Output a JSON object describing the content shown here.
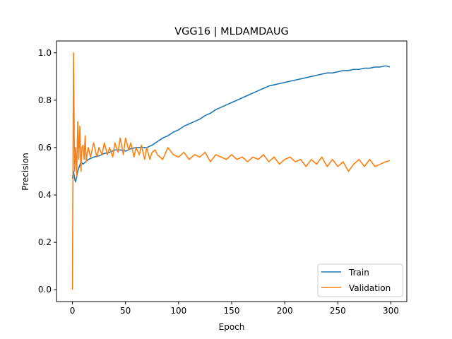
{
  "chart_data": {
    "type": "line",
    "title": "VGG16 | MLDAMDAUG",
    "xlabel": "Epoch",
    "ylabel": "Precision",
    "xlim": [
      -15,
      315
    ],
    "ylim": [
      -0.05,
      1.05
    ],
    "xticks": [
      0,
      50,
      100,
      150,
      200,
      250,
      300
    ],
    "yticks": [
      0.0,
      0.2,
      0.4,
      0.6,
      0.8,
      1.0
    ],
    "ytick_labels": [
      "0.0",
      "0.2",
      "0.4",
      "0.6",
      "0.8",
      "1.0"
    ],
    "legend_position": "lower-right",
    "grid": false,
    "series": [
      {
        "name": "Train",
        "color": "#1f77b4",
        "x": [
          0,
          1,
          2,
          3,
          5,
          8,
          10,
          15,
          20,
          25,
          30,
          35,
          40,
          45,
          50,
          55,
          60,
          65,
          70,
          75,
          80,
          85,
          90,
          95,
          100,
          105,
          110,
          115,
          120,
          125,
          130,
          135,
          140,
          145,
          150,
          155,
          160,
          165,
          170,
          175,
          180,
          185,
          190,
          195,
          200,
          205,
          210,
          215,
          220,
          225,
          230,
          235,
          240,
          245,
          250,
          255,
          260,
          265,
          270,
          275,
          280,
          285,
          290,
          295,
          299
        ],
        "y": [
          0.47,
          0.5,
          0.47,
          0.455,
          0.5,
          0.54,
          0.53,
          0.55,
          0.56,
          0.565,
          0.575,
          0.58,
          0.59,
          0.59,
          0.585,
          0.595,
          0.6,
          0.6,
          0.6,
          0.61,
          0.625,
          0.64,
          0.65,
          0.665,
          0.675,
          0.69,
          0.7,
          0.71,
          0.72,
          0.735,
          0.745,
          0.76,
          0.77,
          0.78,
          0.79,
          0.8,
          0.81,
          0.82,
          0.83,
          0.84,
          0.85,
          0.86,
          0.865,
          0.87,
          0.875,
          0.88,
          0.885,
          0.89,
          0.895,
          0.9,
          0.905,
          0.91,
          0.915,
          0.915,
          0.92,
          0.925,
          0.925,
          0.93,
          0.93,
          0.935,
          0.935,
          0.94,
          0.94,
          0.945,
          0.94
        ]
      },
      {
        "name": "Validation",
        "color": "#ff7f0e",
        "x": [
          0,
          1,
          2,
          3,
          4,
          5,
          6,
          7,
          8,
          9,
          10,
          11,
          12,
          13,
          14,
          15,
          17,
          20,
          23,
          25,
          28,
          30,
          33,
          35,
          38,
          40,
          43,
          45,
          48,
          50,
          53,
          55,
          58,
          60,
          63,
          65,
          68,
          70,
          73,
          75,
          78,
          80,
          85,
          90,
          95,
          100,
          105,
          110,
          115,
          120,
          125,
          130,
          135,
          140,
          145,
          150,
          155,
          160,
          165,
          170,
          175,
          180,
          185,
          190,
          195,
          200,
          205,
          210,
          215,
          220,
          225,
          230,
          235,
          240,
          245,
          250,
          255,
          260,
          265,
          270,
          275,
          280,
          285,
          290,
          295,
          299
        ],
        "y": [
          0.0,
          1.0,
          0.5,
          0.6,
          0.48,
          0.71,
          0.55,
          0.69,
          0.5,
          0.6,
          0.61,
          0.55,
          0.65,
          0.54,
          0.58,
          0.6,
          0.56,
          0.62,
          0.56,
          0.6,
          0.57,
          0.62,
          0.57,
          0.6,
          0.56,
          0.62,
          0.58,
          0.64,
          0.57,
          0.64,
          0.59,
          0.62,
          0.56,
          0.6,
          0.57,
          0.61,
          0.55,
          0.6,
          0.55,
          0.58,
          0.59,
          0.57,
          0.55,
          0.6,
          0.57,
          0.56,
          0.58,
          0.55,
          0.57,
          0.56,
          0.58,
          0.54,
          0.57,
          0.56,
          0.55,
          0.57,
          0.55,
          0.56,
          0.54,
          0.56,
          0.55,
          0.57,
          0.54,
          0.56,
          0.53,
          0.55,
          0.56,
          0.54,
          0.55,
          0.52,
          0.55,
          0.53,
          0.56,
          0.52,
          0.55,
          0.52,
          0.54,
          0.5,
          0.53,
          0.55,
          0.52,
          0.55,
          0.52,
          0.53,
          0.54,
          0.545
        ]
      }
    ]
  }
}
